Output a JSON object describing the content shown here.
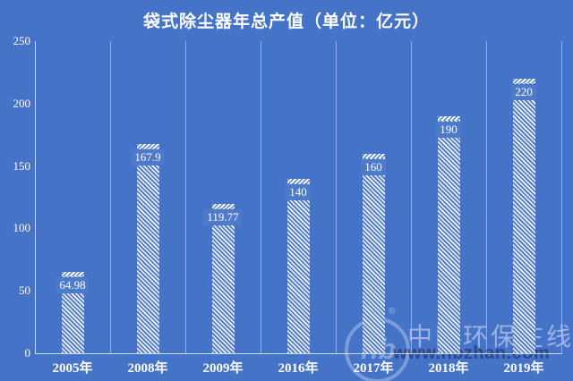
{
  "chart_data": {
    "type": "bar",
    "title": "袋式除尘器年总产值（单位：亿元）",
    "categories": [
      "2005年",
      "2008年",
      "2009年",
      "2016年",
      "2017年",
      "2018年",
      "2019年"
    ],
    "values": [
      64.98,
      167.9,
      119.77,
      140,
      160,
      190,
      220
    ],
    "value_labels": [
      "64.98",
      "167.9",
      "119.77",
      "140",
      "160",
      "190",
      "220"
    ],
    "xlabel": "",
    "ylabel": "",
    "ylim": [
      0,
      250
    ],
    "yticks": [
      0,
      50,
      100,
      150,
      200,
      250
    ],
    "grid": "vertical category separators only",
    "legend": "none",
    "bar_style": "white diagonal hatch on blue background, value label inside top of bar"
  },
  "watermark": {
    "logo_text": "hb",
    "registered_mark": "®",
    "site_name": "中国环保在线",
    "site_url": "www.hbzhan.com"
  },
  "colors": {
    "background": "#4573c7",
    "bar_hatch": "#ffffff",
    "title_text": "#ffffff",
    "tick_text": "#ffffff",
    "gridline": "rgba(255,255,255,0.42)",
    "axis_line": "rgba(255,255,255,0.75)",
    "value_label_bg": "#4e7aca",
    "watermark_site_name": "rgba(208,218,242,0.62)",
    "watermark_site_url": "rgba(25,36,82,0.55)"
  }
}
